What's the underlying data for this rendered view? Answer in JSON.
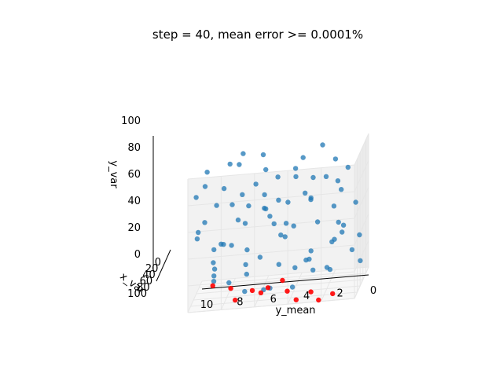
{
  "chart_data": {
    "type": "scatter",
    "projection": "3d",
    "title": "step = 40, mean error >= 0.0001%",
    "xlabel": "y_mean",
    "ylabel": "x_var",
    "zlabel": "y_var",
    "xlim": [
      0,
      10
    ],
    "ylim": [
      0,
      100
    ],
    "zlim": [
      0,
      100
    ],
    "x_ticks": [
      "0",
      "2",
      "4",
      "6",
      "8",
      "10"
    ],
    "y_ticks": [
      "0",
      "20",
      "40",
      "60",
      "80",
      "100"
    ],
    "z_ticks": [
      "0",
      "20",
      "40",
      "60",
      "80",
      "100"
    ],
    "grid": true,
    "legend": "none",
    "colors": {
      "main": "#1f77b4",
      "highlight": "#ff0000"
    },
    "series": [
      {
        "color": "#1f77b4",
        "points": [
          [
            0.4,
            12,
            8
          ],
          [
            0.7,
            35,
            22
          ],
          [
            1.1,
            58,
            41
          ],
          [
            1.4,
            80,
            66
          ],
          [
            1.8,
            22,
            88
          ],
          [
            2.1,
            47,
            13
          ],
          [
            2.5,
            66,
            52
          ],
          [
            2.8,
            90,
            30
          ],
          [
            3.2,
            15,
            74
          ],
          [
            3.6,
            39,
            95
          ],
          [
            3.9,
            61,
            18
          ],
          [
            4.3,
            84,
            47
          ],
          [
            4.6,
            28,
            60
          ],
          [
            5.0,
            52,
            85
          ],
          [
            5.3,
            73,
            7
          ],
          [
            5.7,
            96,
            36
          ],
          [
            6.1,
            19,
            55
          ],
          [
            6.4,
            43,
            79
          ],
          [
            6.8,
            68,
            25
          ],
          [
            7.1,
            86,
            63
          ],
          [
            7.5,
            31,
            92
          ],
          [
            7.9,
            57,
            10
          ],
          [
            8.2,
            77,
            44
          ],
          [
            8.6,
            9,
            70
          ],
          [
            8.9,
            45,
            33
          ],
          [
            9.3,
            63,
            58
          ],
          [
            9.6,
            88,
            83
          ],
          [
            0.9,
            71,
            49
          ],
          [
            1.6,
            5,
            61
          ],
          [
            2.3,
            29,
            77
          ],
          [
            3.0,
            54,
            28
          ],
          [
            3.7,
            78,
            90
          ],
          [
            4.4,
            11,
            38
          ],
          [
            5.1,
            36,
            64
          ],
          [
            5.8,
            59,
            3
          ],
          [
            6.5,
            82,
            72
          ],
          [
            7.2,
            24,
            46
          ],
          [
            7.9,
            49,
            97
          ],
          [
            8.7,
            70,
            15
          ],
          [
            9.5,
            93,
            53
          ],
          [
            0.2,
            41,
            34
          ],
          [
            1.3,
            64,
            81
          ],
          [
            2.6,
            87,
            21
          ],
          [
            3.4,
            8,
            56
          ],
          [
            4.1,
            33,
            86
          ],
          [
            4.8,
            55,
            42
          ],
          [
            5.5,
            79,
            68
          ],
          [
            6.2,
            14,
            94
          ],
          [
            7.0,
            38,
            11
          ],
          [
            7.7,
            62,
            39
          ],
          [
            8.4,
            85,
            75
          ],
          [
            9.1,
            26,
            19
          ],
          [
            9.8,
            50,
            48
          ],
          [
            0.6,
            75,
            93
          ],
          [
            1.9,
            18,
            27
          ],
          [
            3.1,
            42,
            65
          ],
          [
            4.0,
            67,
            5
          ],
          [
            4.9,
            91,
            59
          ],
          [
            6.0,
            20,
            84
          ],
          [
            6.9,
            46,
            31
          ],
          [
            7.6,
            69,
            71
          ],
          [
            8.5,
            92,
            24
          ],
          [
            9.4,
            34,
            89
          ],
          [
            0.3,
            56,
            62
          ],
          [
            1.5,
            83,
            40
          ],
          [
            2.7,
            7,
            96
          ],
          [
            3.5,
            30,
            16
          ],
          [
            4.5,
            53,
            50
          ],
          [
            5.6,
            76,
            78
          ],
          [
            6.6,
            99,
            12
          ],
          [
            7.4,
            21,
            67
          ],
          [
            8.3,
            48,
            37
          ],
          [
            9.2,
            72,
            87
          ],
          [
            1.0,
            95,
            57
          ],
          [
            2.0,
            37,
            9
          ],
          [
            3.3,
            60,
            73
          ],
          [
            4.7,
            81,
            26
          ],
          [
            5.9,
            3,
            45
          ],
          [
            7.3,
            27,
            99
          ],
          [
            8.8,
            52,
            20
          ]
        ]
      },
      {
        "color": "#ff0000",
        "points": [
          [
            9.2,
            18,
            0
          ],
          [
            8.0,
            32,
            0
          ],
          [
            6.6,
            45,
            0
          ],
          [
            5.7,
            40,
            0
          ],
          [
            4.4,
            57,
            0
          ],
          [
            2.9,
            66,
            0
          ],
          [
            1.5,
            78,
            0
          ],
          [
            6.0,
            55,
            0
          ],
          [
            3.6,
            88,
            0
          ],
          [
            7.4,
            72,
            0
          ],
          [
            2.2,
            95,
            0
          ],
          [
            5.0,
            20,
            0
          ]
        ]
      }
    ]
  }
}
